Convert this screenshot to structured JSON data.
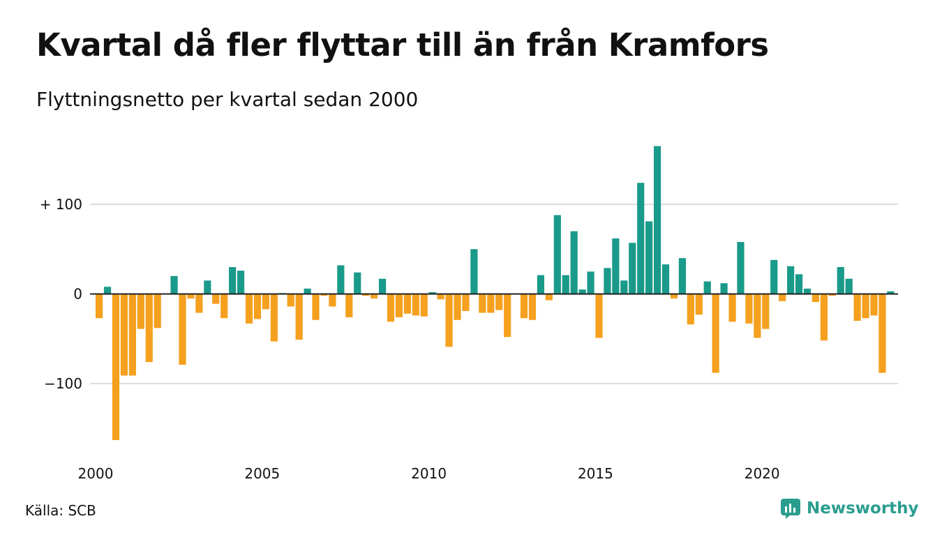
{
  "header": {
    "title": "Kvartal då fler flyttar till än från Kramfors",
    "subtitle": "Flyttningsnetto per kvartal sedan 2000"
  },
  "footer": {
    "source": "Källa: SCB",
    "brand": "Newsworthy"
  },
  "colors": {
    "positive": "#1a9a8a",
    "negative": "#f5a01e",
    "grid": "#dddddd",
    "axis": "#222222",
    "brand": "#2a9d8f"
  },
  "chart_data": {
    "type": "bar",
    "x_start_year": 2000,
    "values": [
      -27,
      8,
      -163,
      -91,
      -91,
      -39,
      -76,
      -38,
      0,
      20,
      -79,
      -5,
      -21,
      15,
      -11,
      -27,
      30,
      26,
      -33,
      -28,
      -17,
      -53,
      1,
      -14,
      -51,
      6,
      -29,
      -2,
      -14,
      32,
      -26,
      24,
      -2,
      -5,
      17,
      -31,
      -26,
      -22,
      -24,
      -25,
      2,
      -6,
      -59,
      -29,
      -19,
      50,
      -21,
      -21,
      -18,
      -48,
      0,
      -27,
      -29,
      21,
      -7,
      88,
      21,
      70,
      5,
      25,
      -49,
      29,
      62,
      15,
      57,
      124,
      81,
      165,
      33,
      -5,
      40,
      -34,
      -23,
      14,
      -88,
      12,
      -31,
      58,
      -33,
      -49,
      -39,
      38,
      -8,
      31,
      22,
      6,
      -9,
      -52,
      -2,
      30,
      17,
      -30,
      -27,
      -24,
      -88,
      3
    ],
    "x_ticks": [
      "2000",
      "2005",
      "2010",
      "2015",
      "2020"
    ],
    "y_ticks": [
      {
        "value": 100,
        "label": "+ 100"
      },
      {
        "value": 0,
        "label": "0"
      },
      {
        "value": -100,
        "label": "−100"
      }
    ],
    "ylim": [
      -170,
      170
    ],
    "grid": true
  }
}
